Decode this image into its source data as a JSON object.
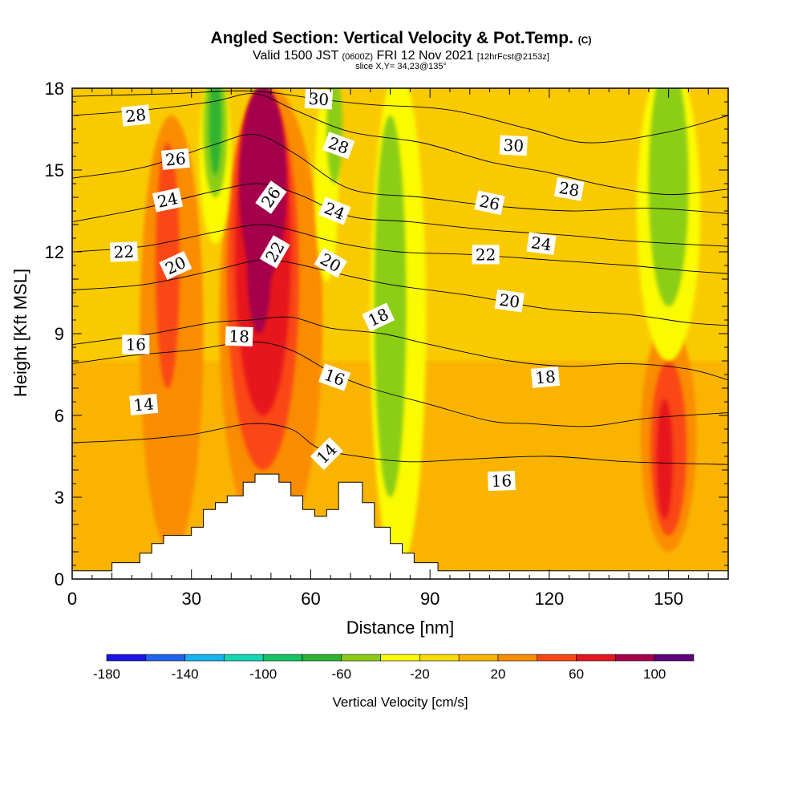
{
  "header": {
    "title_main": "Angled Section: Vertical Velocity & Pot.Temp.",
    "title_mark": "(C)",
    "valid_a": "Valid 1500 JST",
    "valid_b": "(0600Z)",
    "valid_c": "FRI 12 Nov 2021",
    "valid_d": "[12hrFcst@2153z]",
    "slice": "slice X,Y= 34,23@135°"
  },
  "chart_data": {
    "type": "heatmap",
    "xlabel": "Distance [nm]",
    "ylabel": "Height [Kft MSL]",
    "xlim": [
      0,
      165
    ],
    "ylim": [
      0,
      18
    ],
    "x_ticks": [
      "0",
      "30",
      "60",
      "90",
      "120",
      "150"
    ],
    "y_ticks": [
      "0",
      "3",
      "6",
      "9",
      "12",
      "15",
      "18"
    ],
    "colorbar": {
      "label": "Vertical Velocity [cm/s]",
      "tick_labels": [
        "-180",
        "-140",
        "-100",
        "-60",
        "-20",
        "20",
        "60",
        "100"
      ],
      "levels": [
        -180,
        -160,
        -140,
        -120,
        -100,
        -80,
        -60,
        -40,
        -20,
        0,
        20,
        40,
        60,
        80,
        100,
        120
      ],
      "colors": [
        "#1b14e6",
        "#1f64f0",
        "#14b4f0",
        "#14d7b4",
        "#14c364",
        "#2db432",
        "#8ccd14",
        "#fafa00",
        "#fadc00",
        "#fab400",
        "#fa8c00",
        "#fa4614",
        "#e6141e",
        "#a5004b",
        "#5f0078"
      ]
    },
    "terrain": [
      [
        0,
        0.3
      ],
      [
        10,
        0.3
      ],
      [
        10,
        0.6
      ],
      [
        17,
        0.6
      ],
      [
        17,
        0.95
      ],
      [
        20,
        0.95
      ],
      [
        20,
        1.3
      ],
      [
        23,
        1.3
      ],
      [
        23,
        1.6
      ],
      [
        30,
        1.6
      ],
      [
        30,
        1.9
      ],
      [
        33,
        1.9
      ],
      [
        33,
        2.55
      ],
      [
        36,
        2.55
      ],
      [
        36,
        2.8
      ],
      [
        39,
        2.8
      ],
      [
        39,
        3.05
      ],
      [
        43,
        3.05
      ],
      [
        43,
        3.55
      ],
      [
        46,
        3.55
      ],
      [
        46,
        3.85
      ],
      [
        52,
        3.85
      ],
      [
        52,
        3.55
      ],
      [
        55,
        3.55
      ],
      [
        55,
        3.05
      ],
      [
        58,
        3.05
      ],
      [
        58,
        2.55
      ],
      [
        61,
        2.55
      ],
      [
        61,
        2.3
      ],
      [
        64,
        2.3
      ],
      [
        64,
        2.55
      ],
      [
        67,
        2.55
      ],
      [
        67,
        3.55
      ],
      [
        73,
        3.55
      ],
      [
        73,
        2.8
      ],
      [
        76,
        2.8
      ],
      [
        76,
        1.9
      ],
      [
        80,
        1.9
      ],
      [
        80,
        1.3
      ],
      [
        83,
        1.3
      ],
      [
        83,
        0.95
      ],
      [
        86,
        0.95
      ],
      [
        86,
        0.6
      ],
      [
        92,
        0.6
      ],
      [
        92,
        0.3
      ],
      [
        165,
        0.3
      ]
    ],
    "theta_contours": [
      {
        "label": "14",
        "points": [
          [
            0,
            5.0
          ],
          [
            15,
            5.1
          ],
          [
            30,
            5.3
          ],
          [
            45,
            5.7
          ],
          [
            55,
            5.5
          ],
          [
            62,
            4.8
          ],
          [
            72,
            4.5
          ],
          [
            85,
            4.3
          ],
          [
            100,
            4.4
          ],
          [
            120,
            4.5
          ],
          [
            140,
            4.3
          ],
          [
            165,
            4.2
          ]
        ]
      },
      {
        "label": "16",
        "points": [
          [
            0,
            7.9
          ],
          [
            15,
            8.2
          ],
          [
            30,
            8.4
          ],
          [
            45,
            8.7
          ],
          [
            55,
            8.4
          ],
          [
            65,
            7.6
          ],
          [
            75,
            7.0
          ],
          [
            90,
            6.4
          ],
          [
            105,
            5.8
          ],
          [
            115,
            5.7
          ],
          [
            130,
            5.6
          ],
          [
            145,
            5.9
          ],
          [
            165,
            6.1
          ]
        ]
      },
      {
        "label": "18",
        "points": [
          [
            0,
            8.6
          ],
          [
            20,
            9.0
          ],
          [
            35,
            9.4
          ],
          [
            45,
            9.5
          ],
          [
            55,
            9.6
          ],
          [
            65,
            9.2
          ],
          [
            78,
            9.0
          ],
          [
            90,
            8.6
          ],
          [
            110,
            8.0
          ],
          [
            125,
            7.8
          ],
          [
            140,
            7.9
          ],
          [
            155,
            7.7
          ],
          [
            165,
            7.3
          ]
        ]
      },
      {
        "label": "20",
        "points": [
          [
            0,
            10.6
          ],
          [
            18,
            10.8
          ],
          [
            35,
            11.3
          ],
          [
            47,
            11.7
          ],
          [
            55,
            11.6
          ],
          [
            64,
            11.3
          ],
          [
            80,
            10.8
          ],
          [
            100,
            10.4
          ],
          [
            120,
            9.9
          ],
          [
            140,
            9.7
          ],
          [
            155,
            9.4
          ],
          [
            165,
            9.3
          ]
        ]
      },
      {
        "label": "22",
        "points": [
          [
            0,
            12.0
          ],
          [
            18,
            12.2
          ],
          [
            35,
            12.7
          ],
          [
            47,
            13.0
          ],
          [
            55,
            12.8
          ],
          [
            68,
            12.3
          ],
          [
            82,
            12.0
          ],
          [
            100,
            11.9
          ],
          [
            120,
            11.7
          ],
          [
            140,
            11.5
          ],
          [
            155,
            11.3
          ],
          [
            165,
            11.2
          ]
        ]
      },
      {
        "label": "24",
        "points": [
          [
            0,
            13.1
          ],
          [
            18,
            13.6
          ],
          [
            35,
            14.2
          ],
          [
            47,
            14.5
          ],
          [
            57,
            14.1
          ],
          [
            70,
            13.3
          ],
          [
            85,
            13.1
          ],
          [
            105,
            12.8
          ],
          [
            125,
            12.6
          ],
          [
            140,
            12.4
          ],
          [
            165,
            12.2
          ]
        ]
      },
      {
        "label": "26",
        "points": [
          [
            0,
            14.7
          ],
          [
            18,
            15.1
          ],
          [
            35,
            15.9
          ],
          [
            46,
            16.3
          ],
          [
            56,
            15.6
          ],
          [
            70,
            14.3
          ],
          [
            88,
            14.0
          ],
          [
            105,
            13.7
          ],
          [
            125,
            13.5
          ],
          [
            145,
            13.6
          ],
          [
            165,
            13.4
          ]
        ]
      },
      {
        "label": "28",
        "points": [
          [
            0,
            17.0
          ],
          [
            18,
            17.2
          ],
          [
            35,
            17.5
          ],
          [
            46,
            17.8
          ],
          [
            56,
            17.2
          ],
          [
            70,
            16.4
          ],
          [
            88,
            16.0
          ],
          [
            105,
            15.3
          ],
          [
            120,
            14.9
          ],
          [
            135,
            14.4
          ],
          [
            150,
            14.1
          ],
          [
            165,
            14.3
          ]
        ]
      },
      {
        "label": "30",
        "points": [
          [
            0,
            17.7
          ],
          [
            25,
            17.8
          ],
          [
            45,
            17.9
          ],
          [
            62,
            17.6
          ],
          [
            75,
            17.4
          ],
          [
            95,
            17.2
          ],
          [
            115,
            16.5
          ],
          [
            130,
            16.0
          ],
          [
            150,
            16.4
          ],
          [
            165,
            17.0
          ]
        ]
      }
    ],
    "contour_labels": [
      {
        "text": "28",
        "x": 16,
        "y": 17.0,
        "angle": -6
      },
      {
        "text": "26",
        "x": 26,
        "y": 15.4,
        "angle": -5
      },
      {
        "text": "24",
        "x": 24,
        "y": 13.9,
        "angle": -12
      },
      {
        "text": "22",
        "x": 13,
        "y": 12.0,
        "angle": -2
      },
      {
        "text": "20",
        "x": 26,
        "y": 11.5,
        "angle": -25
      },
      {
        "text": "16",
        "x": 16,
        "y": 8.6,
        "angle": 0
      },
      {
        "text": "14",
        "x": 18,
        "y": 6.4,
        "angle": -5
      },
      {
        "text": "18",
        "x": 42,
        "y": 8.9,
        "angle": 2
      },
      {
        "text": "26",
        "x": 50,
        "y": 14.0,
        "angle": -55
      },
      {
        "text": "22",
        "x": 51,
        "y": 12.0,
        "angle": -60
      },
      {
        "text": "30",
        "x": 62,
        "y": 17.6,
        "angle": 3
      },
      {
        "text": "28",
        "x": 67,
        "y": 15.9,
        "angle": 20
      },
      {
        "text": "24",
        "x": 66,
        "y": 13.5,
        "angle": 22
      },
      {
        "text": "20",
        "x": 65,
        "y": 11.6,
        "angle": 30
      },
      {
        "text": "18",
        "x": 77,
        "y": 9.6,
        "angle": -25
      },
      {
        "text": "16",
        "x": 66,
        "y": 7.4,
        "angle": 20
      },
      {
        "text": "14",
        "x": 64,
        "y": 4.6,
        "angle": -45
      },
      {
        "text": "30",
        "x": 111,
        "y": 15.9,
        "angle": 3
      },
      {
        "text": "26",
        "x": 105,
        "y": 13.8,
        "angle": 12
      },
      {
        "text": "28",
        "x": 125,
        "y": 14.3,
        "angle": 10
      },
      {
        "text": "24",
        "x": 118,
        "y": 12.3,
        "angle": 8
      },
      {
        "text": "22",
        "x": 104,
        "y": 11.9,
        "angle": 0
      },
      {
        "text": "20",
        "x": 110,
        "y": 10.2,
        "angle": 8
      },
      {
        "text": "18",
        "x": 119,
        "y": 7.4,
        "angle": -5
      },
      {
        "text": "16",
        "x": 108,
        "y": 3.6,
        "angle": -2
      }
    ],
    "fill_regions": [
      {
        "value": 30,
        "cx": 25,
        "cy": 9.0,
        "rx": 8,
        "ry": 8.0
      },
      {
        "value": 30,
        "cx": 150,
        "cy": 5.2,
        "rx": 7,
        "ry": 4.2
      },
      {
        "value": 30,
        "cx": 50,
        "cy": 9.5,
        "rx": 13,
        "ry": 8.5
      },
      {
        "value": 50,
        "cx": 24,
        "cy": 11.5,
        "rx": 3,
        "ry": 4.5
      },
      {
        "value": 50,
        "cx": 150,
        "cy": 4.8,
        "rx": 4.5,
        "ry": 3.2
      },
      {
        "value": 50,
        "cx": 48,
        "cy": 11.0,
        "rx": 9,
        "ry": 7.0
      },
      {
        "value": 70,
        "cx": 149,
        "cy": 4.4,
        "rx": 2,
        "ry": 2.2
      },
      {
        "value": 70,
        "cx": 48,
        "cy": 12.0,
        "rx": 7,
        "ry": 6.0
      },
      {
        "value": 90,
        "cx": 48,
        "cy": 14.5,
        "rx": 6,
        "ry": 3.6
      },
      {
        "value": 90,
        "cx": 47,
        "cy": 11.5,
        "rx": 3,
        "ry": 2.5
      },
      {
        "value": -30,
        "cx": 36,
        "cy": 15.5,
        "rx": 4,
        "ry": 3.2
      },
      {
        "value": -30,
        "cx": 64,
        "cy": 14.5,
        "rx": 3,
        "ry": 3.6
      },
      {
        "value": -30,
        "cx": 82,
        "cy": 9.5,
        "rx": 7,
        "ry": 9.2
      },
      {
        "value": -30,
        "cx": 150,
        "cy": 13.5,
        "rx": 8,
        "ry": 5.5
      },
      {
        "value": -50,
        "cx": 36,
        "cy": 16.5,
        "rx": 3,
        "ry": 2.5
      },
      {
        "value": -50,
        "cx": 80,
        "cy": 10.0,
        "rx": 4,
        "ry": 7.0
      },
      {
        "value": -50,
        "cx": 150,
        "cy": 14.5,
        "rx": 5,
        "ry": 4.5
      },
      {
        "value": -70,
        "cx": 36,
        "cy": 16.8,
        "rx": 1.5,
        "ry": 2.0
      },
      {
        "value": -50,
        "cx": 66,
        "cy": 16.5,
        "rx": 2,
        "ry": 2.0
      }
    ]
  }
}
